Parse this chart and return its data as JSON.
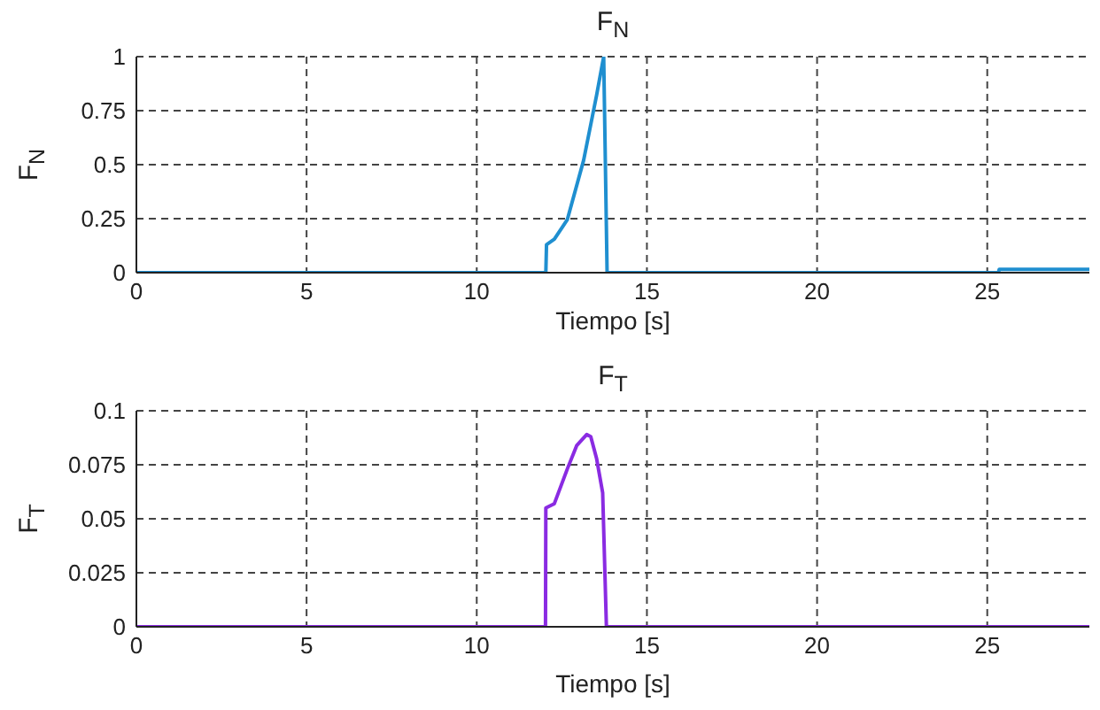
{
  "chart_data": [
    {
      "type": "line",
      "title": "F$_{N}$",
      "xlabel": "Tiempo [s]",
      "ylabel": "F$_{N}$",
      "xlim": [
        0,
        28
      ],
      "xticks": [
        0,
        5,
        10,
        15,
        20,
        25
      ],
      "ylim": [
        0,
        1
      ],
      "yticks": [
        0,
        0.25,
        0.5,
        0.75,
        1
      ],
      "grid": true,
      "line_style": "solid",
      "series": [
        {
          "color": "#1f8fd0",
          "x": [
            0,
            12.03,
            12.05,
            12.28,
            12.66,
            13.14,
            13.52,
            13.73,
            13.83,
            25.33,
            25.35,
            28
          ],
          "values": [
            0,
            0,
            0.13,
            0.155,
            0.245,
            0.52,
            0.82,
            1.0,
            0,
            0,
            0.015,
            0.015
          ]
        }
      ]
    },
    {
      "type": "line",
      "title": "F$_{T}$",
      "xlabel": "Tiempo [s]",
      "ylabel": "F$_{T}$",
      "xlim": [
        0,
        28
      ],
      "xticks": [
        0,
        5,
        10,
        15,
        20,
        25
      ],
      "ylim": [
        0,
        0.1
      ],
      "yticks": [
        0,
        0.025,
        0.05,
        0.075,
        0.1
      ],
      "grid": true,
      "line_style": "solid",
      "series": [
        {
          "color": "#8a2be2",
          "x": [
            0,
            12.02,
            12.03,
            12.28,
            12.66,
            12.94,
            13.23,
            13.35,
            13.52,
            13.7,
            13.81,
            28
          ],
          "values": [
            0,
            0,
            0.055,
            0.057,
            0.073,
            0.084,
            0.089,
            0.088,
            0.078,
            0.062,
            0,
            0
          ]
        }
      ]
    }
  ]
}
